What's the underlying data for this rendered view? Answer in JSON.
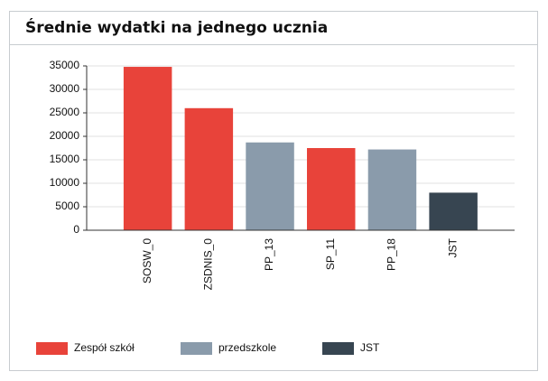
{
  "title": "Średnie wydatki na jednego ucznia",
  "chart_data": {
    "type": "bar",
    "categories": [
      "SOSW_0",
      "ZSDNIS_0",
      "PP_13",
      "SP_11",
      "PP_18",
      "JST"
    ],
    "series": [
      {
        "name": "Zespół szkół",
        "color": "#e8433a",
        "values": [
          34800,
          26000,
          null,
          17500,
          null,
          null
        ]
      },
      {
        "name": "przedszkole",
        "color": "#8a9bab",
        "values": [
          null,
          null,
          18700,
          null,
          17200,
          null
        ]
      },
      {
        "name": "JST",
        "color": "#374551",
        "values": [
          null,
          null,
          null,
          null,
          null,
          8000
        ]
      }
    ],
    "ylim": [
      0,
      35000
    ],
    "yticks": [
      0,
      5000,
      10000,
      15000,
      20000,
      25000,
      30000,
      35000
    ],
    "grid": true
  }
}
